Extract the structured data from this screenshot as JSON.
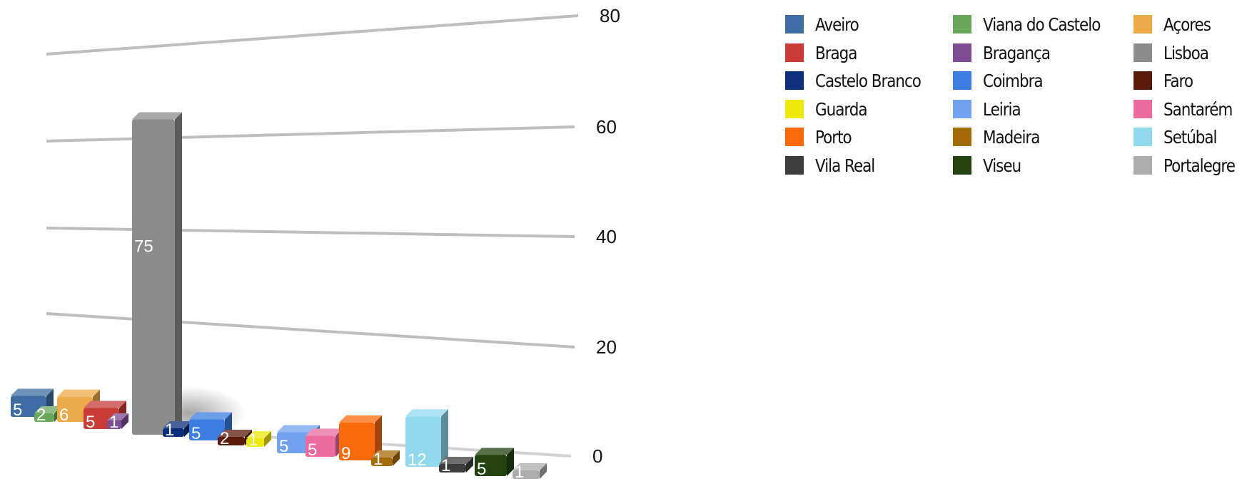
{
  "chart_data": {
    "type": "bar",
    "categories": [
      "Aveiro",
      "Viana do Castelo",
      "Açores",
      "Braga",
      "Bragança",
      "Lisboa",
      "Castelo Branco",
      "Coimbra",
      "Faro",
      "Guarda",
      "Leiria",
      "Santarém",
      "Porto",
      "Madeira",
      "Setúbal",
      "Vila Real",
      "Viseu",
      "Portalegre"
    ],
    "values": [
      5,
      2,
      6,
      5,
      1,
      75,
      1,
      5,
      2,
      1,
      5,
      5,
      9,
      1,
      12,
      1,
      5,
      1
    ],
    "colors": [
      "#3f6da3",
      "#69a75a",
      "#eea949",
      "#c83b37",
      "#7e4d94",
      "#8c8c8c",
      "#0d2e7a",
      "#3b7de0",
      "#5c1a0a",
      "#eee80c",
      "#72a2ef",
      "#ec6b9e",
      "#f96a0a",
      "#a56b08",
      "#91d9ec",
      "#3d3d3d",
      "#22420f",
      "#adadad"
    ],
    "ylim": [
      0,
      80
    ],
    "yticks": [
      "0",
      "20",
      "40",
      "60",
      "80"
    ],
    "grid": true,
    "legend": "right",
    "legend_entries": [
      "Aveiro",
      "Viana do Castelo",
      "Açores",
      "Braga",
      "Bragança",
      "Lisboa",
      "Castelo Branco",
      "Coimbra",
      "Faro",
      "Guarda",
      "Leiria",
      "Santarém",
      "Porto",
      "Madeira",
      "Setúbal",
      "Vila Real",
      "Viseu",
      "Portalegre"
    ],
    "title": "",
    "xlabel": "",
    "ylabel": ""
  }
}
